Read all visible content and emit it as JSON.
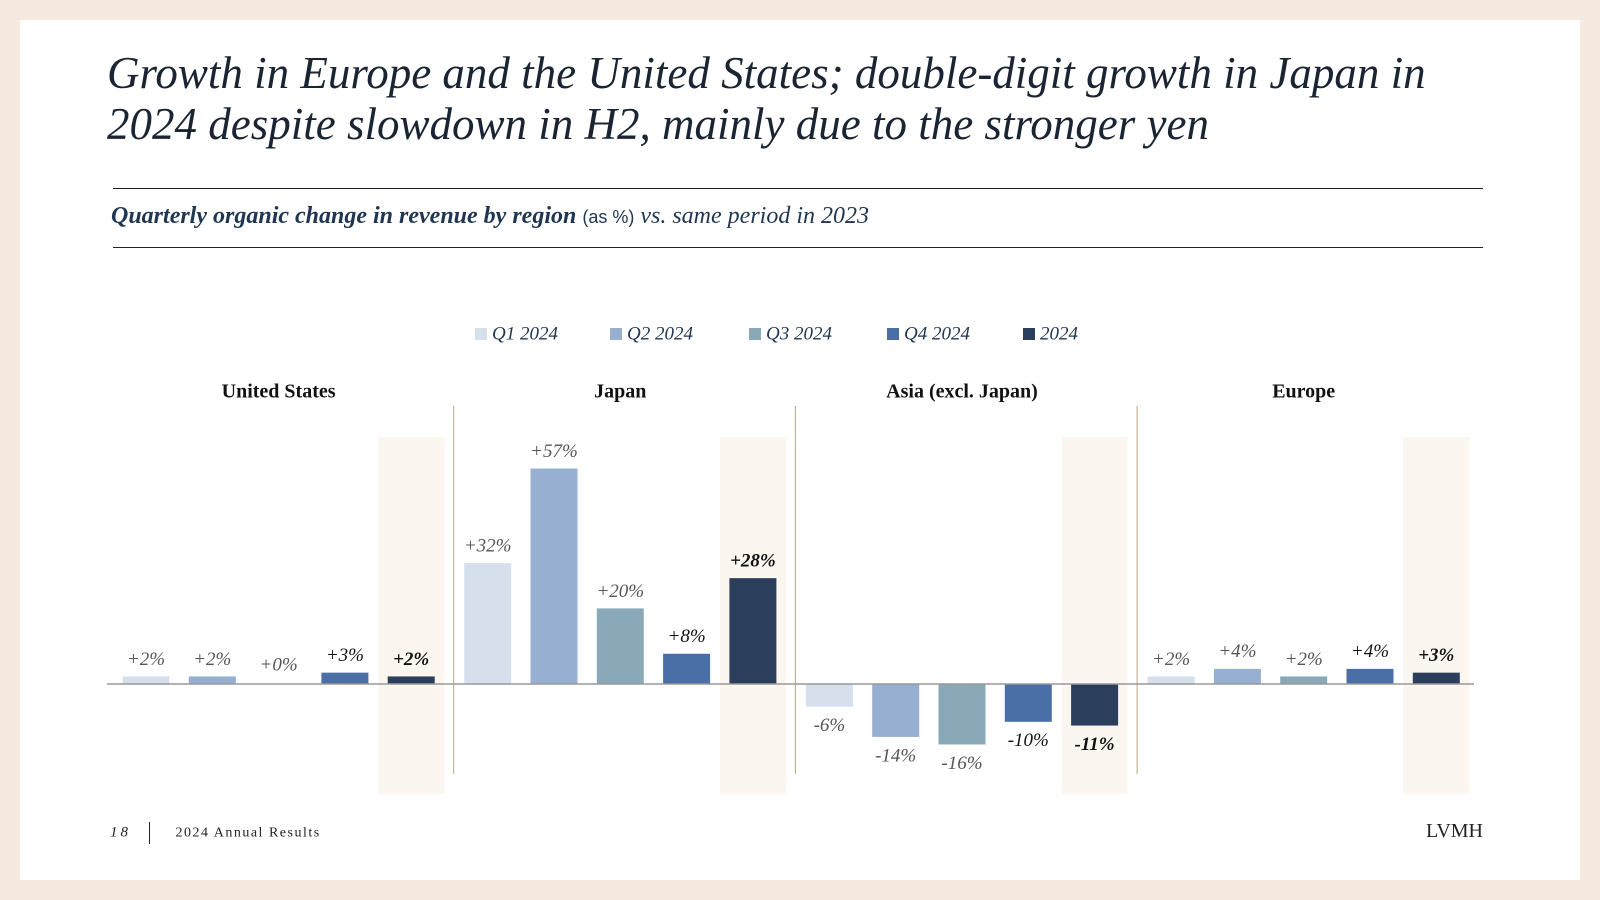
{
  "chart_data": {
    "type": "bar",
    "title": "Growth in Europe and the United States; double-digit growth in Japan in 2024 despite slowdown in H2, mainly due to the stronger yen",
    "subtitle": "Quarterly organic change in revenue by region",
    "subtitle_unit": "(as %)",
    "subtitle_note": "vs. same period in 2023",
    "categories": [
      "United States",
      "Japan",
      "Asia (excl. Japan)",
      "Europe"
    ],
    "series": [
      {
        "name": "Q1 2024",
        "color": "#d6e0ec",
        "values": [
          2,
          32,
          -6,
          2
        ],
        "value_labels": [
          "+2%",
          "+32%",
          "-6%",
          "+2%"
        ]
      },
      {
        "name": "Q2 2024",
        "color": "#97afd0",
        "values": [
          2,
          57,
          -14,
          4
        ],
        "value_labels": [
          "+2%",
          "+57%",
          "-14%",
          "+4%"
        ]
      },
      {
        "name": "Q3 2024",
        "color": "#8aa9b8",
        "values": [
          0,
          20,
          -16,
          2
        ],
        "value_labels": [
          "+0%",
          "+20%",
          "-16%",
          "+2%"
        ]
      },
      {
        "name": "Q4 2024",
        "color": "#4a6ea6",
        "values": [
          3,
          8,
          -10,
          4
        ],
        "value_labels": [
          "+3%",
          "+8%",
          "-10%",
          "+4%"
        ]
      },
      {
        "name": "2024",
        "color": "#2b3f5c",
        "values": [
          2,
          28,
          -11,
          3
        ],
        "value_labels": [
          "+2%",
          "+28%",
          "-11%",
          "+3%"
        ]
      }
    ]
  },
  "footer": {
    "page": "18",
    "label": "2024 Annual Results",
    "brand": "LVMH"
  }
}
